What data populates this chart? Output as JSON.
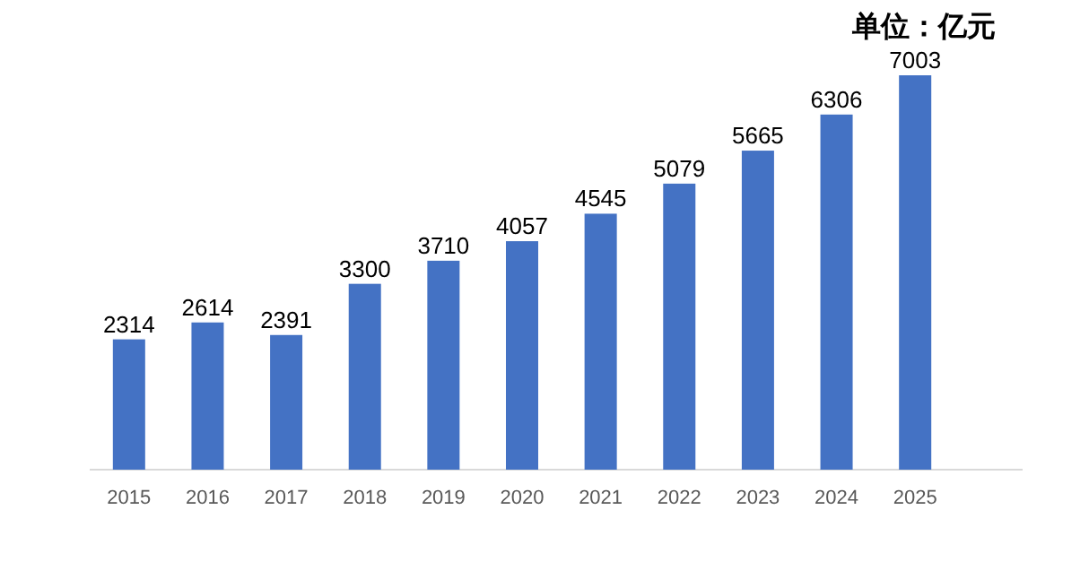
{
  "chart_data": {
    "type": "bar",
    "subtitle": "单位：亿元",
    "categories": [
      "2015",
      "2016",
      "2017",
      "2018",
      "2019",
      "2020",
      "2021",
      "2022",
      "2023",
      "2024",
      "2025"
    ],
    "values": [
      2314,
      2614,
      2391,
      3300,
      3710,
      4057,
      4545,
      5079,
      5665,
      6306,
      7003
    ],
    "color": "#4472c4",
    "data_labels": true
  }
}
